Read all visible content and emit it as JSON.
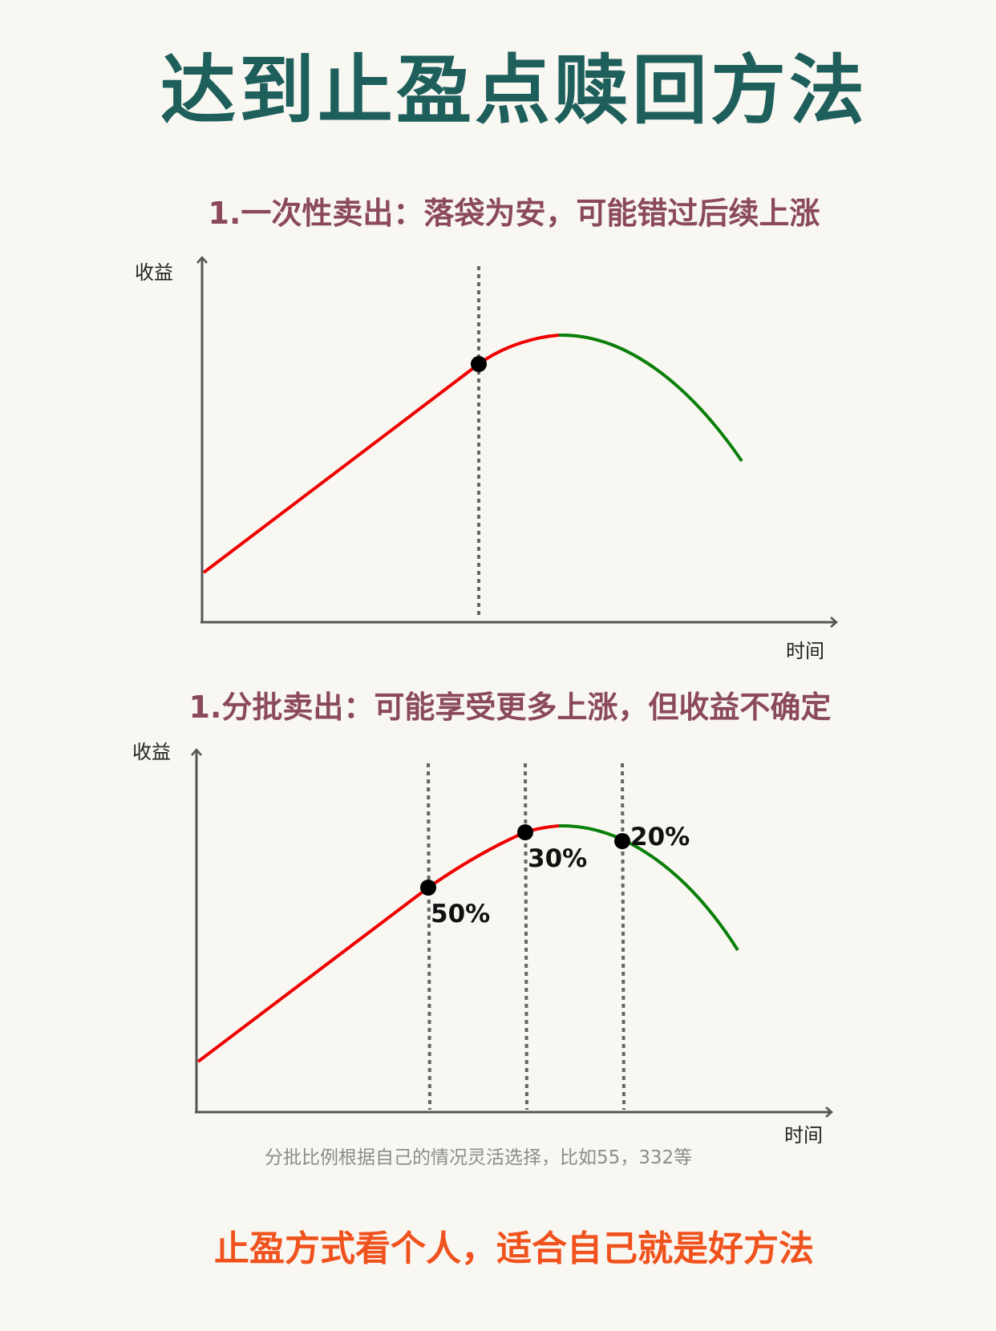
{
  "title": "达到止盈点赎回方法",
  "section1": {
    "heading": "1.一次性卖出：落袋为安，可能错过后续上涨",
    "ylabel": "收益",
    "xlabel": "时间"
  },
  "section2": {
    "heading": "1.分批卖出：可能享受更多上涨，但收益不确定",
    "ylabel": "收益",
    "xlabel": "时间",
    "points": [
      {
        "label": "50%"
      },
      {
        "label": "30%"
      },
      {
        "label": "20%"
      }
    ]
  },
  "note": "分批比例根据自己的情况灵活选择，比如55，332等",
  "footer": "止盈方式看个人，适合自己就是好方法",
  "colors": {
    "title": "#1e5f5c",
    "heading": "#8b4a5c",
    "rising": "#ee0000",
    "falling": "#0a7f0a",
    "footer": "#f0521e"
  }
}
